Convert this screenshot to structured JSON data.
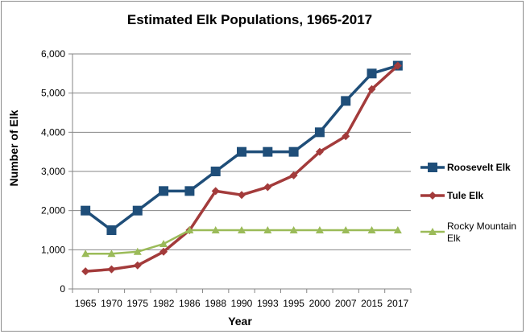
{
  "chart_data": {
    "type": "line",
    "title": "Estimated Elk Populations, 1965-2017",
    "xlabel": "Year",
    "ylabel": "Number of Elk",
    "categories": [
      "1965",
      "1970",
      "1975",
      "1982",
      "1986",
      "1988",
      "1990",
      "1993",
      "1995",
      "2000",
      "2007",
      "2015",
      "2017"
    ],
    "ylim": [
      0,
      6000
    ],
    "yticks": [
      0,
      1000,
      2000,
      3000,
      4000,
      5000,
      6000
    ],
    "ytick_labels": [
      "0",
      "1,000",
      "2,000",
      "3,000",
      "4,000",
      "5,000",
      "6,000"
    ],
    "grid": "horizontal major gridlines",
    "legend_position": "right",
    "series": [
      {
        "name": "Roosevelt Elk",
        "color": "#1f4e79",
        "marker": "square",
        "values": [
          2000,
          1500,
          2000,
          2500,
          2500,
          3000,
          3500,
          3500,
          3500,
          4000,
          4800,
          5500,
          5700
        ]
      },
      {
        "name": "Tule Elk",
        "color": "#a33b3b",
        "marker": "diamond",
        "values": [
          450,
          500,
          600,
          950,
          1500,
          2500,
          2400,
          2600,
          2900,
          3500,
          3900,
          5100,
          5700
        ]
      },
      {
        "name": "Rocky Mountain Elk",
        "name_lines": [
          "Rocky Mountain",
          "Elk"
        ],
        "color": "#9bbb59",
        "marker": "triangle",
        "values": [
          900,
          900,
          950,
          1150,
          1500,
          1500,
          1500,
          1500,
          1500,
          1500,
          1500,
          1500,
          1500
        ]
      }
    ]
  }
}
